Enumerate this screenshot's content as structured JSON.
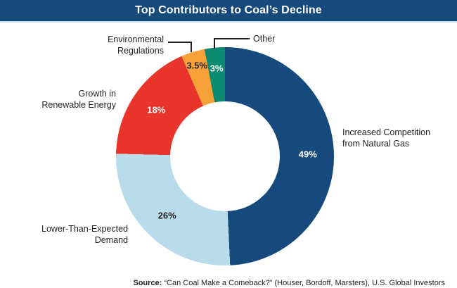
{
  "title": "Top Contributors to Coal’s Decline",
  "colors": {
    "title_bar": "#164a7c",
    "title_bar_separator": "#c9d9e9",
    "label_text": "#231f20"
  },
  "chart_data": {
    "type": "pie",
    "subtype": "donut",
    "title": "Top Contributors to Coal’s Decline",
    "direction": "clockwise",
    "start_angle_deg": 0,
    "legend_position": "outside-labels",
    "slices": [
      {
        "label": "Increased Competition from Natural Gas",
        "value": 49,
        "percent_label": "49%",
        "color": "#164a7c",
        "label_color": "#ffffff",
        "label_radius_frac": 0.76
      },
      {
        "label": "Lower-Than-Expected Demand",
        "value": 26,
        "percent_label": "26%",
        "color": "#b8dcea",
        "label_color": "#231f20",
        "label_radius_frac": 0.76
      },
      {
        "label": "Growth in Renewable Energy",
        "value": 18,
        "percent_label": "18%",
        "color": "#e8342a",
        "label_color": "#ffffff",
        "label_radius_frac": 0.76
      },
      {
        "label": "Environmental Regulations",
        "value": 3.5,
        "percent_label": "3.5%",
        "color": "#f7a138",
        "label_color": "#231f20",
        "label_radius_frac": 0.87
      },
      {
        "label": "Other",
        "value": 3,
        "percent_label": "3%",
        "color": "#0d8b70",
        "label_color": "#ffffff",
        "label_radius_frac": 0.81
      }
    ]
  },
  "labels": {
    "environmental": {
      "lines": [
        "Environmental",
        "Regulations"
      ]
    },
    "other": {
      "lines": [
        "Other"
      ]
    },
    "growth": {
      "lines": [
        "Growth in",
        "Renewable Energy"
      ]
    },
    "lower": {
      "lines": [
        "Lower-Than-Expected",
        "Demand"
      ]
    },
    "increased": {
      "lines": [
        "Increased Competition",
        "from Natural Gas"
      ]
    }
  },
  "source": {
    "prefix": "Source:",
    "text": " “Can Coal Make a Comeback?” (Houser, Bordoff, Marsters), U.S. Global Investors"
  }
}
